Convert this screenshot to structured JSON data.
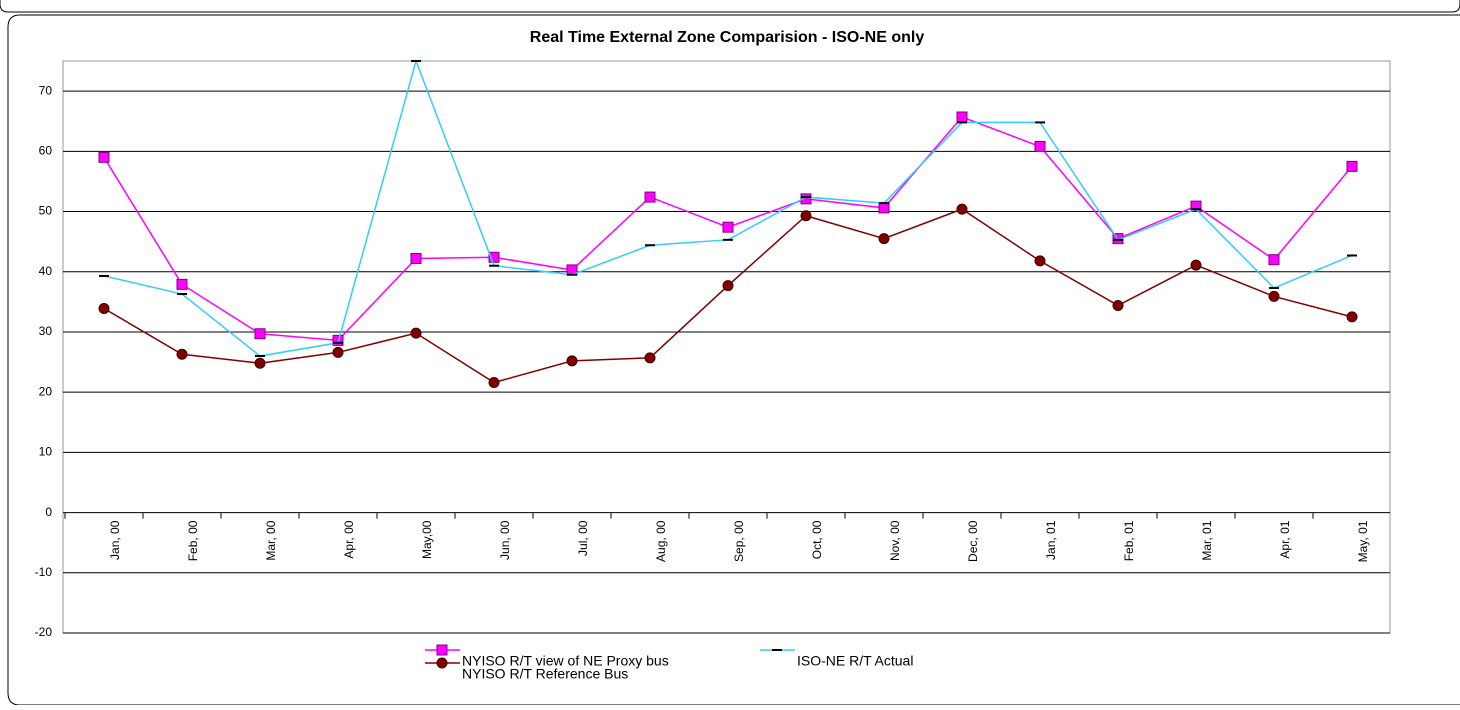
{
  "chart_data": {
    "type": "line",
    "title": "Real Time External Zone Comparision - ISO-NE only",
    "categories": [
      "Jan, 00",
      "Feb, 00",
      "Mar, 00",
      "Apr, 00",
      "May,00",
      "Jun, 00",
      "Jul, 00",
      "Aug, 00",
      "Sep, 00",
      "Oct, 00",
      "Nov, 00",
      "Dec, 00",
      "Jan, 01",
      "Feb, 01",
      "Mar, 01",
      "Apr, 01",
      "May, 01"
    ],
    "series": [
      {
        "name": "NYISO R/T view of NE Proxy bus",
        "color": "#ff00ff",
        "marker": "square",
        "values": [
          59,
          37.9,
          29.7,
          28.6,
          42.2,
          42.4,
          40.3,
          52.4,
          47.4,
          52.1,
          50.6,
          65.7,
          60.8,
          45.5,
          50.9,
          42.0,
          57.5
        ]
      },
      {
        "name": "ISO-NE R/T Actual",
        "color": "#33ccff",
        "marker": "dash",
        "values": [
          39.3,
          36.3,
          26.0,
          28.2,
          75.0,
          41.0,
          39.5,
          44.4,
          45.3,
          52.4,
          51.4,
          64.8,
          64.8,
          45.3,
          50.4,
          37.3,
          42.7
        ]
      },
      {
        "name": "NYISO R/T Reference Bus",
        "color": "#800000",
        "marker": "circle",
        "values": [
          33.9,
          26.3,
          24.8,
          26.6,
          29.8,
          21.6,
          25.2,
          25.7,
          37.7,
          49.3,
          45.5,
          50.4,
          41.8,
          34.4,
          41.1,
          35.9,
          32.5
        ]
      }
    ],
    "ylim": [
      -20,
      75
    ],
    "yticks": [
      -20,
      -10,
      0,
      10,
      20,
      30,
      40,
      50,
      60,
      70
    ],
    "grid": true
  }
}
